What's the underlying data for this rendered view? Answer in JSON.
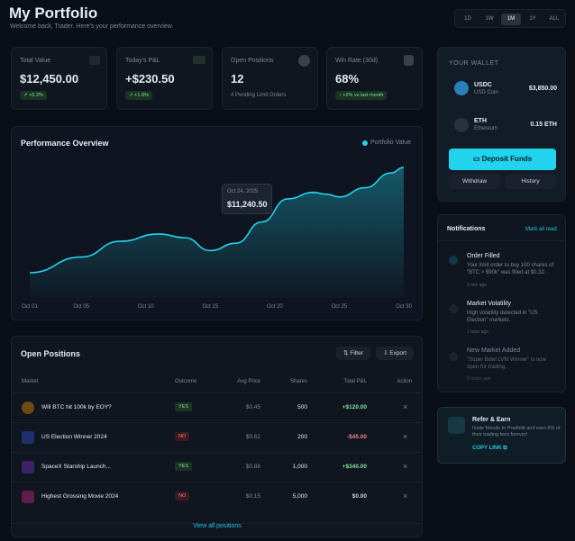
{
  "header": {
    "title": "My Portfolio",
    "subtitle": "Welcome back, Trader. Here's your performance overview.",
    "ranges": [
      "1D",
      "1W",
      "1M",
      "1Y",
      "ALL"
    ],
    "active_range": 2
  },
  "stats": [
    {
      "label": "Total Value",
      "value": "$12,450.00",
      "change": "+5.2%"
    },
    {
      "label": "Today's P&L",
      "value": "+$230.50",
      "change": "+1.8%"
    },
    {
      "label": "Open Positions",
      "value": "12",
      "note": "4 Pending Limit Orders"
    },
    {
      "label": "Win Rate (30d)",
      "value": "68%",
      "change": "+2% vs last month"
    }
  ],
  "wallet": {
    "title": "YOUR WALLET",
    "assets": [
      {
        "symbol": "USDC",
        "name": "USD Coin",
        "amount": "$3,850.00"
      },
      {
        "symbol": "ETH",
        "name": "Ethereum",
        "amount": "0.15 ETH"
      }
    ],
    "deposit": "Deposit Funds",
    "withdraw": "Withdraw",
    "history": "History"
  },
  "performance": {
    "title": "Performance Overview",
    "legend": "Portfolio Value",
    "tooltip": {
      "date": "Oct 24, 2025",
      "value": "$11,240.50"
    },
    "chart": {
      "type": "line",
      "color": "#22d3ee",
      "x": [
        1,
        5,
        8,
        11,
        13,
        15,
        17,
        19,
        21,
        23,
        24,
        25,
        27,
        29,
        30
      ],
      "values": [
        8690,
        9200,
        9710,
        9950,
        9830,
        9410,
        9650,
        10340,
        11090,
        11300,
        11240.5,
        11150,
        11450,
        11930,
        12110
      ],
      "xlim": [
        1,
        30
      ],
      "xticks": [
        {
          "value": 1,
          "label": "Oct 01"
        },
        {
          "value": 5,
          "label": "Oct 05"
        },
        {
          "value": 10,
          "label": "Oct 10"
        },
        {
          "value": 15,
          "label": "Oct 15"
        },
        {
          "value": 20,
          "label": "Oct 20"
        },
        {
          "value": 25,
          "label": "Oct 25"
        },
        {
          "value": 30,
          "label": "Oct 30"
        }
      ]
    }
  },
  "positions": {
    "title": "Open Positions",
    "filter": "Filter",
    "export": "Export",
    "columns": [
      "Market",
      "Outcome",
      "Avg Price",
      "Shares",
      "Total P&L",
      "Action"
    ],
    "rows": [
      {
        "market": "Will BTC hit 100k by EOY?",
        "outcome": "YES",
        "avg_price": "$0.45",
        "shares": "500",
        "total_pnl": "+$120.00"
      },
      {
        "market": "US Election Winner 2024",
        "outcome": "NO",
        "avg_price": "$0.62",
        "shares": "200",
        "total_pnl": "-$45.00"
      },
      {
        "market": "SpaceX Starship Launch...",
        "outcome": "YES",
        "avg_price": "$0.88",
        "shares": "1,000",
        "total_pnl": "+$340.00"
      },
      {
        "market": "Highest Grossing Movie 2024",
        "outcome": "NO",
        "avg_price": "$0.15",
        "shares": "5,000",
        "total_pnl": "$0.00"
      }
    ],
    "view_all": "View all positions"
  },
  "notifications": {
    "title": "Notifications",
    "mark_all": "Mark all read",
    "items": [
      {
        "title": "Order Filled",
        "body": "Your limit order to buy 100 shares of \"BTC > $90k\" was filled at $0.32.",
        "time": "2 min ago"
      },
      {
        "title": "Market Volatility",
        "body": "High volatility detected in \"US Election\" markets.",
        "time": "1 hour ago"
      },
      {
        "title": "New Market Added",
        "body": "\"Super Bowl LVIII Winner\" is now open for trading.",
        "time": "5 hours ago"
      }
    ]
  },
  "refer": {
    "title": "Refer & Earn",
    "body": "Invite friends to Predictit and earn 5% of their trading fees forever!",
    "link": "COPY LINK"
  }
}
